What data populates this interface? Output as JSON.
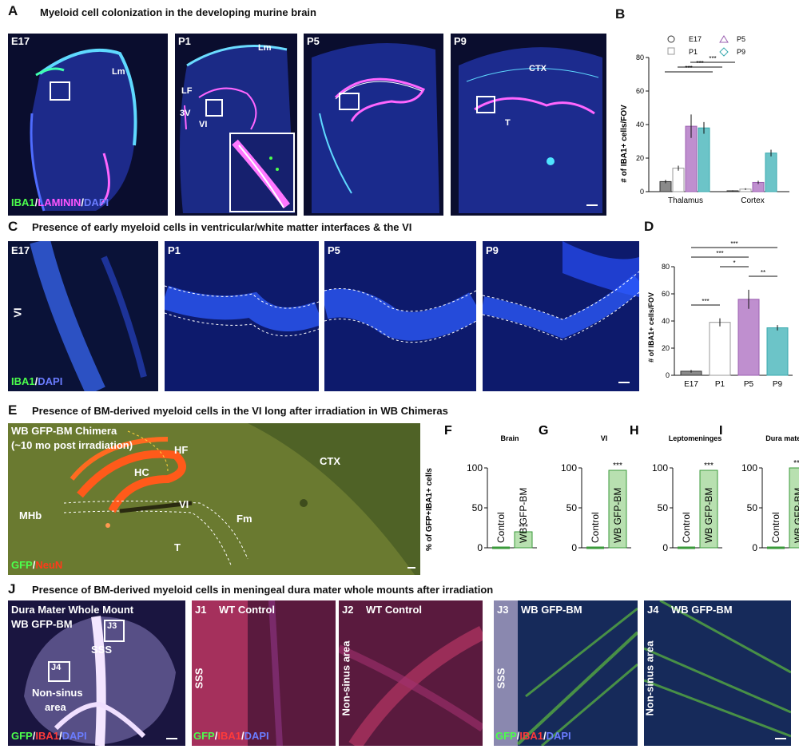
{
  "panelA": {
    "letter": "A",
    "title": "Myeloid cell colonization in the developing murine brain",
    "images": [
      {
        "label": "E17",
        "annotations": [
          "Lm"
        ]
      },
      {
        "label": "P1",
        "annotations": [
          "Lm",
          "LF",
          "3V",
          "VI"
        ]
      },
      {
        "label": "P5",
        "annotations": []
      },
      {
        "label": "P9",
        "annotations": [
          "CTX",
          "T"
        ]
      }
    ],
    "stain": {
      "c1": "IBA1",
      "sep1": "/",
      "c2": "LAMININ",
      "sep2": "/",
      "c3": "DAPI"
    },
    "colors": {
      "c1": "#4cff4c",
      "c2": "#ff55ff",
      "c3": "#6a7cff"
    }
  },
  "panelB": {
    "letter": "B",
    "ylabel": "# of IBA1+ cells/FOV",
    "legend": [
      "E17",
      "P1",
      "P5",
      "P9"
    ],
    "sig": "***"
  },
  "panelC": {
    "letter": "C",
    "title": "Presence of early myeloid cells in ventricular/white matter interfaces & the VI",
    "images": [
      {
        "label": "E17",
        "side": "VI"
      },
      {
        "label": "P1"
      },
      {
        "label": "P5"
      },
      {
        "label": "P9"
      }
    ],
    "stain": {
      "c1": "IBA1",
      "sep1": "/",
      "c3": "DAPI"
    }
  },
  "panelD": {
    "letter": "D",
    "ylabel": "# of IBA1+ cells/FOV"
  },
  "panelE": {
    "letter": "E",
    "title": "Presence of BM-derived myeloid cells in the VI long after irradiation in WB Chimeras",
    "line1": "WB GFP-BM Chimera",
    "line2": "(~10 mo post irradiation)",
    "annotations": [
      "HF",
      "HC",
      "CTX",
      "MHb",
      "VI",
      "Fm",
      "T"
    ],
    "stain": {
      "c1": "GFP",
      "sep1": "/",
      "c2": "NeuN"
    }
  },
  "panelFI": {
    "ylabel": "% of GFP+IBA1+ cells",
    "panels": [
      {
        "letter": "F",
        "title": "Brain",
        "control": "Control",
        "treated": "WB GFP-BM",
        "sig": "***"
      },
      {
        "letter": "G",
        "title": "VI",
        "control": "Control",
        "treated": "WB GFP-BM",
        "sig": "***"
      },
      {
        "letter": "H",
        "title": "Leptomeninges",
        "control": "Control",
        "treated": "WB GFP-BM",
        "sig": "***"
      },
      {
        "letter": "I",
        "title": "Dura mater",
        "control": "Control",
        "treated": "WB GFP-BM",
        "sig": "***"
      }
    ]
  },
  "panelJ": {
    "letter": "J",
    "title": "Presence of BM-derived myeloid cells in meningeal dura mater whole mounts after irradiation",
    "main_line1": "Dura Mater Whole Mount",
    "main_line2": "WB GFP-BM",
    "box_labels": [
      "J3",
      "J4"
    ],
    "sss": "SSS",
    "nonsinus1": "Non-sinus",
    "nonsinus2": "area",
    "sub": [
      {
        "id": "J1",
        "title": "WT Control",
        "side": "SSS"
      },
      {
        "id": "J2",
        "title": "WT Control",
        "side": "Non-sinus area"
      },
      {
        "id": "J3",
        "title": "WB GFP-BM",
        "side": "SSS"
      },
      {
        "id": "J4",
        "title": "WB GFP-BM",
        "side": "Non-sinus area"
      }
    ],
    "stain": {
      "c1": "GFP",
      "sep1": "/",
      "c2": "IBA1",
      "sep2": "/",
      "c3": "DAPI"
    }
  },
  "chart_data": [
    {
      "type": "bar",
      "panel": "B",
      "categories": [
        "Thalamus",
        "Cortex"
      ],
      "series": [
        {
          "name": "E17",
          "values": [
            6,
            0.5
          ]
        },
        {
          "name": "P1",
          "values": [
            14,
            1.5
          ]
        },
        {
          "name": "P5",
          "values": [
            39,
            5.5
          ]
        },
        {
          "name": "P9",
          "values": [
            38,
            23
          ]
        }
      ],
      "errors": [
        [
          1,
          0.3
        ],
        [
          1.5,
          0.5
        ],
        [
          7,
          1
        ],
        [
          3.5,
          2
        ]
      ],
      "ylabel": "# of IBA1+ cells/FOV",
      "ylim": [
        0,
        80
      ],
      "yticks": [
        0,
        20,
        40,
        60,
        80
      ]
    },
    {
      "type": "bar",
      "panel": "D",
      "categories": [
        "E17",
        "P1",
        "P5",
        "P9"
      ],
      "values": [
        3,
        39,
        56,
        35
      ],
      "errors": [
        1,
        3,
        7,
        2
      ],
      "ylabel": "# of IBA1+ cells/FOV",
      "ylim": [
        0,
        80
      ],
      "yticks": [
        0,
        20,
        40,
        60,
        80
      ],
      "significance": [
        "***",
        "***",
        "***",
        "*",
        "**"
      ]
    },
    {
      "type": "bar",
      "panel": "F",
      "title": "Brain",
      "categories": [
        "Control",
        "WB GFP-BM"
      ],
      "values": [
        0,
        20
      ],
      "ylabel": "% of GFP+IBA1+ cells",
      "ylim": [
        0,
        100
      ],
      "yticks": [
        0,
        50,
        100
      ]
    },
    {
      "type": "bar",
      "panel": "G",
      "title": "VI",
      "categories": [
        "Control",
        "WB GFP-BM"
      ],
      "values": [
        0,
        97
      ],
      "ylim": [
        0,
        100
      ],
      "yticks": [
        0,
        50,
        100
      ]
    },
    {
      "type": "bar",
      "panel": "H",
      "title": "Leptomeninges",
      "categories": [
        "Control",
        "WB GFP-BM"
      ],
      "values": [
        0,
        97
      ],
      "ylim": [
        0,
        100
      ],
      "yticks": [
        0,
        50,
        100
      ]
    },
    {
      "type": "bar",
      "panel": "I",
      "title": "Dura mater",
      "categories": [
        "Control",
        "WB GFP-BM"
      ],
      "values": [
        0,
        100
      ],
      "ylim": [
        0,
        100
      ],
      "yticks": [
        0,
        50,
        100
      ]
    }
  ]
}
